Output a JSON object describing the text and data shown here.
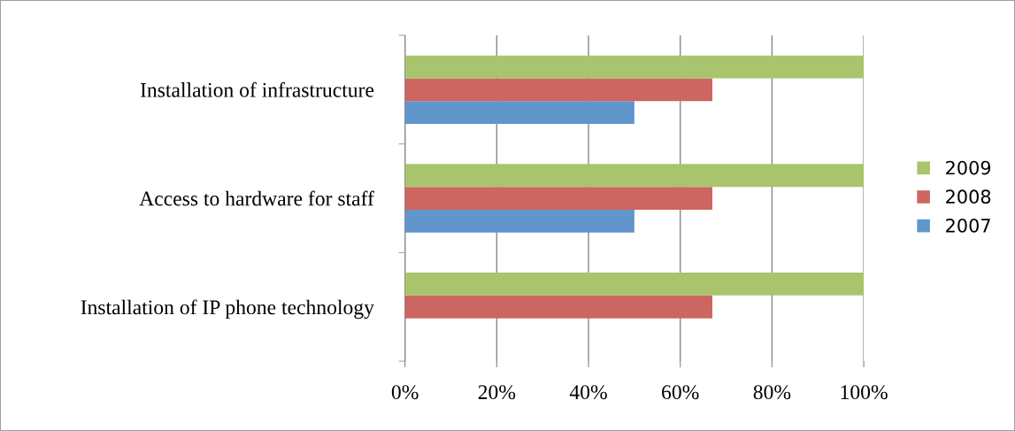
{
  "chart_data": {
    "type": "bar",
    "orientation": "horizontal",
    "categories": [
      "Installation of infrastructure",
      "Access to hardware for staff",
      "Installation of IP phone technology"
    ],
    "series": [
      {
        "name": "2007",
        "color": "#6096cc",
        "values": [
          0.5,
          0.5,
          null
        ]
      },
      {
        "name": "2008",
        "color": "#cd6660",
        "values": [
          0.67,
          0.67,
          0.67
        ]
      },
      {
        "name": "2009",
        "color": "#a8c46c",
        "values": [
          1.0,
          1.0,
          1.0
        ]
      }
    ],
    "xlim": [
      0,
      1
    ],
    "xticks": [
      {
        "value": 0,
        "label": "0%"
      },
      {
        "value": 0.2,
        "label": "20%"
      },
      {
        "value": 0.4,
        "label": "40%"
      },
      {
        "value": 0.6,
        "label": "60%"
      },
      {
        "value": 0.8,
        "label": "80%"
      },
      {
        "value": 1,
        "label": "100%"
      }
    ],
    "grid": "x",
    "legend": "right"
  }
}
